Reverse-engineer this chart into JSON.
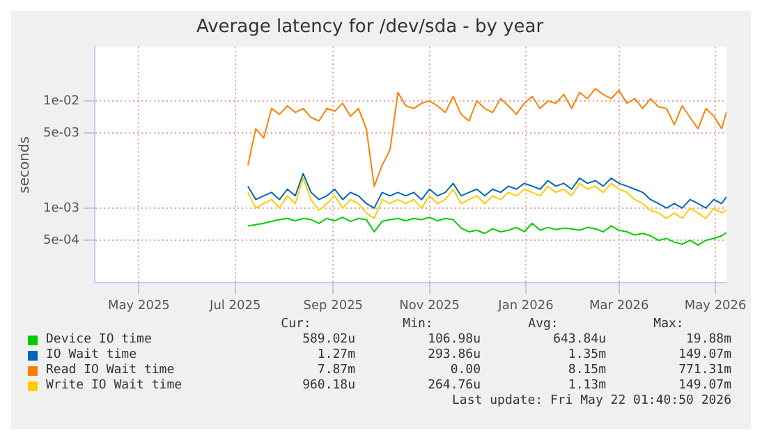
{
  "chart_data": {
    "type": "line",
    "title": "Average latency for /dev/sda - by year",
    "ylabel": "seconds",
    "log": "y",
    "grid": true,
    "legend": "bottom",
    "marker": "none",
    "line_style": "solid",
    "xlim": [
      "2025-04-17",
      "2026-05-22"
    ],
    "xticks": [
      {
        "value": "2025-05-15",
        "label": "May 2025"
      },
      {
        "value": "2025-07-15",
        "label": "Jul 2025"
      },
      {
        "value": "2025-09-15",
        "label": "Sep 2025"
      },
      {
        "value": "2025-11-15",
        "label": "Nov 2025"
      },
      {
        "value": "2026-01-15",
        "label": "Jan 2026"
      },
      {
        "value": "2026-03-15",
        "label": "Mar 2026"
      },
      {
        "value": "2026-05-15",
        "label": "May 2026"
      }
    ],
    "ylim": [
      0.0002,
      0.032
    ],
    "yticks": [
      {
        "value": 0.0005,
        "label": "5e-04"
      },
      {
        "value": 0.001,
        "label": "1e-03"
      },
      {
        "value": 0.005,
        "label": "5e-03"
      },
      {
        "value": 0.01,
        "label": "1e-02"
      }
    ],
    "x": [
      "2025-07-23",
      "2025-07-28",
      "2025-08-02",
      "2025-08-07",
      "2025-08-12",
      "2025-08-17",
      "2025-08-22",
      "2025-08-27",
      "2025-09-01",
      "2025-09-06",
      "2025-09-11",
      "2025-09-16",
      "2025-09-21",
      "2025-09-26",
      "2025-10-01",
      "2025-10-06",
      "2025-10-11",
      "2025-10-16",
      "2025-10-21",
      "2025-10-26",
      "2025-10-31",
      "2025-11-05",
      "2025-11-10",
      "2025-11-15",
      "2025-11-20",
      "2025-11-25",
      "2025-11-30",
      "2025-12-05",
      "2025-12-10",
      "2025-12-15",
      "2025-12-20",
      "2025-12-25",
      "2025-12-30",
      "2026-01-04",
      "2026-01-09",
      "2026-01-14",
      "2026-01-19",
      "2026-01-24",
      "2026-01-29",
      "2026-02-03",
      "2026-02-08",
      "2026-02-13",
      "2026-02-18",
      "2026-02-23",
      "2026-02-28",
      "2026-03-05",
      "2026-03-10",
      "2026-03-15",
      "2026-03-20",
      "2026-03-25",
      "2026-03-30",
      "2026-04-04",
      "2026-04-09",
      "2026-04-14",
      "2026-04-19",
      "2026-04-24",
      "2026-04-29",
      "2026-05-04",
      "2026-05-09",
      "2026-05-14",
      "2026-05-19",
      "2026-05-22"
    ],
    "series": [
      {
        "name": "Device IO time",
        "color": "#00cc00",
        "values": [
          0.00068,
          0.0007,
          0.00072,
          0.00075,
          0.00078,
          0.0008,
          0.00076,
          0.0008,
          0.00078,
          0.00072,
          0.0008,
          0.00076,
          0.00082,
          0.00075,
          0.0008,
          0.00078,
          0.0006,
          0.00075,
          0.00078,
          0.0008,
          0.00076,
          0.0008,
          0.00078,
          0.00082,
          0.00076,
          0.0008,
          0.00078,
          0.00065,
          0.0006,
          0.00062,
          0.00058,
          0.00064,
          0.0006,
          0.00062,
          0.00066,
          0.0006,
          0.00072,
          0.00062,
          0.00066,
          0.00063,
          0.00065,
          0.00064,
          0.00062,
          0.00066,
          0.00064,
          0.0006,
          0.00068,
          0.00062,
          0.0006,
          0.00056,
          0.00058,
          0.00055,
          0.0005,
          0.00052,
          0.00048,
          0.00046,
          0.0005,
          0.00045,
          0.0005,
          0.00052,
          0.00055,
          0.00059
        ]
      },
      {
        "name": "IO Wait time",
        "color": "#0066b3",
        "values": [
          0.0016,
          0.0012,
          0.0013,
          0.0014,
          0.0012,
          0.0015,
          0.0013,
          0.0021,
          0.0014,
          0.0012,
          0.0013,
          0.0015,
          0.0012,
          0.0014,
          0.0013,
          0.0011,
          0.001,
          0.0014,
          0.0013,
          0.0014,
          0.0013,
          0.0014,
          0.0012,
          0.0015,
          0.0013,
          0.0014,
          0.0017,
          0.0013,
          0.0014,
          0.0015,
          0.0013,
          0.0015,
          0.0014,
          0.0016,
          0.0015,
          0.0017,
          0.0016,
          0.0015,
          0.0018,
          0.0016,
          0.0017,
          0.0015,
          0.0019,
          0.0017,
          0.0018,
          0.0016,
          0.0019,
          0.0017,
          0.0016,
          0.0015,
          0.0014,
          0.0012,
          0.0011,
          0.001,
          0.0011,
          0.001,
          0.0012,
          0.0011,
          0.001,
          0.0012,
          0.0011,
          0.00127
        ]
      },
      {
        "name": "Read IO Wait time",
        "color": "#ff8000",
        "values": [
          0.0025,
          0.0055,
          0.0045,
          0.0085,
          0.0075,
          0.009,
          0.0078,
          0.0085,
          0.007,
          0.0065,
          0.0085,
          0.008,
          0.0095,
          0.0072,
          0.0085,
          0.0055,
          0.0016,
          0.0025,
          0.0035,
          0.012,
          0.009,
          0.0085,
          0.0095,
          0.01,
          0.009,
          0.0078,
          0.011,
          0.0075,
          0.0065,
          0.01,
          0.0085,
          0.0078,
          0.0105,
          0.009,
          0.0075,
          0.0095,
          0.011,
          0.0085,
          0.01,
          0.0095,
          0.0115,
          0.0085,
          0.012,
          0.0105,
          0.013,
          0.0115,
          0.0105,
          0.0125,
          0.0095,
          0.0105,
          0.0085,
          0.0105,
          0.0088,
          0.0085,
          0.006,
          0.009,
          0.007,
          0.0055,
          0.0085,
          0.0072,
          0.0055,
          0.0079
        ]
      },
      {
        "name": "Write IO Wait time",
        "color": "#ffcc00",
        "values": [
          0.0014,
          0.001,
          0.0011,
          0.0012,
          0.001,
          0.0013,
          0.0011,
          0.0019,
          0.0012,
          0.00095,
          0.0011,
          0.0013,
          0.001,
          0.0012,
          0.0011,
          0.0009,
          0.0008,
          0.0012,
          0.0011,
          0.0012,
          0.0011,
          0.0012,
          0.001,
          0.0013,
          0.0011,
          0.0012,
          0.0015,
          0.0011,
          0.0012,
          0.0013,
          0.0011,
          0.0013,
          0.0012,
          0.0014,
          0.0013,
          0.0015,
          0.0014,
          0.0013,
          0.0016,
          0.0014,
          0.0015,
          0.0013,
          0.0017,
          0.0015,
          0.0016,
          0.0014,
          0.0017,
          0.0015,
          0.0014,
          0.0012,
          0.0011,
          0.00095,
          0.0009,
          0.0008,
          0.0009,
          0.0008,
          0.001,
          0.0009,
          0.0008,
          0.001,
          0.0009,
          0.00096
        ]
      }
    ],
    "annotations": [
      "Cur:",
      "Min:",
      "Avg:",
      "Max:",
      "589.02u",
      "106.98u",
      "643.84u",
      "19.88m",
      "1.27m",
      "293.86u",
      "1.35m",
      "149.07m",
      "7.87m",
      "0.00",
      "8.15m",
      "771.31m",
      "960.18u",
      "264.76u",
      "1.13m",
      "149.07m",
      "Last update: Fri May 22 01:40:50 2026"
    ]
  }
}
